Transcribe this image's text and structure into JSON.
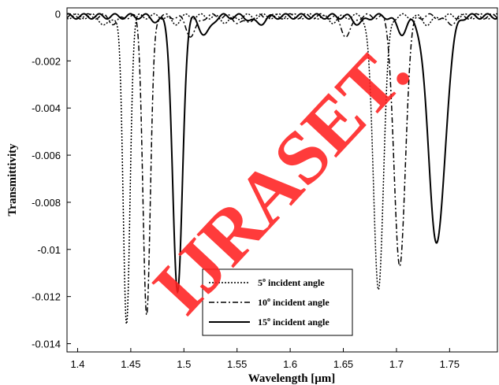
{
  "chart_data": {
    "type": "line",
    "xlabel": "Wavelength [μm]",
    "ylabel": "Transmittivity",
    "xlim": [
      1.39,
      1.795
    ],
    "ylim": [
      -0.01435,
      0.00025
    ],
    "xticks": [
      1.4,
      1.45,
      1.5,
      1.55,
      1.6,
      1.65,
      1.7,
      1.75
    ],
    "xtick_labels": [
      "1.4",
      "1.45",
      "1.5",
      "1.55",
      "1.6",
      "1.65",
      "1.7",
      "1.75"
    ],
    "yticks": [
      0,
      -0.002,
      -0.004,
      -0.006,
      -0.008,
      -0.01,
      -0.012,
      -0.014
    ],
    "ytick_labels": [
      "0",
      "-0.002",
      "-0.004",
      "-0.006",
      "-0.008",
      "-0.01",
      "-0.012",
      "-0.014"
    ],
    "grid": false,
    "legend_position": "bottom-center",
    "series": [
      {
        "name": "5° incident angle",
        "label_main": "5",
        "label_rest": " incident angle",
        "dash": "dotted",
        "peaks": [
          {
            "x": 1.4265,
            "depth": -0.0004,
            "width": 0.004
          },
          {
            "x": 1.446,
            "depth": -0.0131,
            "width": 0.0032
          },
          {
            "x": 1.491,
            "depth": -0.0003,
            "width": 0.004
          },
          {
            "x": 1.54,
            "depth": -0.0002,
            "width": 0.006
          },
          {
            "x": 1.64,
            "depth": -0.0002,
            "width": 0.005
          },
          {
            "x": 1.683,
            "depth": -0.0115,
            "width": 0.0048
          },
          {
            "x": 1.73,
            "depth": -0.0003,
            "width": 0.005
          }
        ]
      },
      {
        "name": "10° incident angle",
        "label_main": "10",
        "label_rest": " incident angle",
        "dash": "dashdot",
        "peaks": [
          {
            "x": 1.435,
            "depth": -0.0003,
            "width": 0.004
          },
          {
            "x": 1.465,
            "depth": -0.0127,
            "width": 0.0035
          },
          {
            "x": 1.507,
            "depth": -0.0008,
            "width": 0.005
          },
          {
            "x": 1.555,
            "depth": -0.0003,
            "width": 0.006
          },
          {
            "x": 1.653,
            "depth": -0.0008,
            "width": 0.005
          },
          {
            "x": 1.703,
            "depth": -0.0107,
            "width": 0.0052
          },
          {
            "x": 1.75,
            "depth": -0.0003,
            "width": 0.005
          }
        ]
      },
      {
        "name": "15° incident angle",
        "label_main": "15",
        "label_rest": " incident angle",
        "dash": "solid",
        "peaks": [
          {
            "x": 1.475,
            "depth": -0.0002,
            "width": 0.004
          },
          {
            "x": 1.494,
            "depth": -0.0118,
            "width": 0.0045
          },
          {
            "x": 1.52,
            "depth": -0.0008,
            "width": 0.005
          },
          {
            "x": 1.57,
            "depth": -0.0003,
            "width": 0.006
          },
          {
            "x": 1.665,
            "depth": -0.0003,
            "width": 0.005
          },
          {
            "x": 1.705,
            "depth": -0.0007,
            "width": 0.005
          },
          {
            "x": 1.738,
            "depth": -0.0096,
            "width": 0.0078
          }
        ]
      }
    ]
  },
  "watermark": {
    "text": "IJRASET. ",
    "color": "#ff2020"
  }
}
